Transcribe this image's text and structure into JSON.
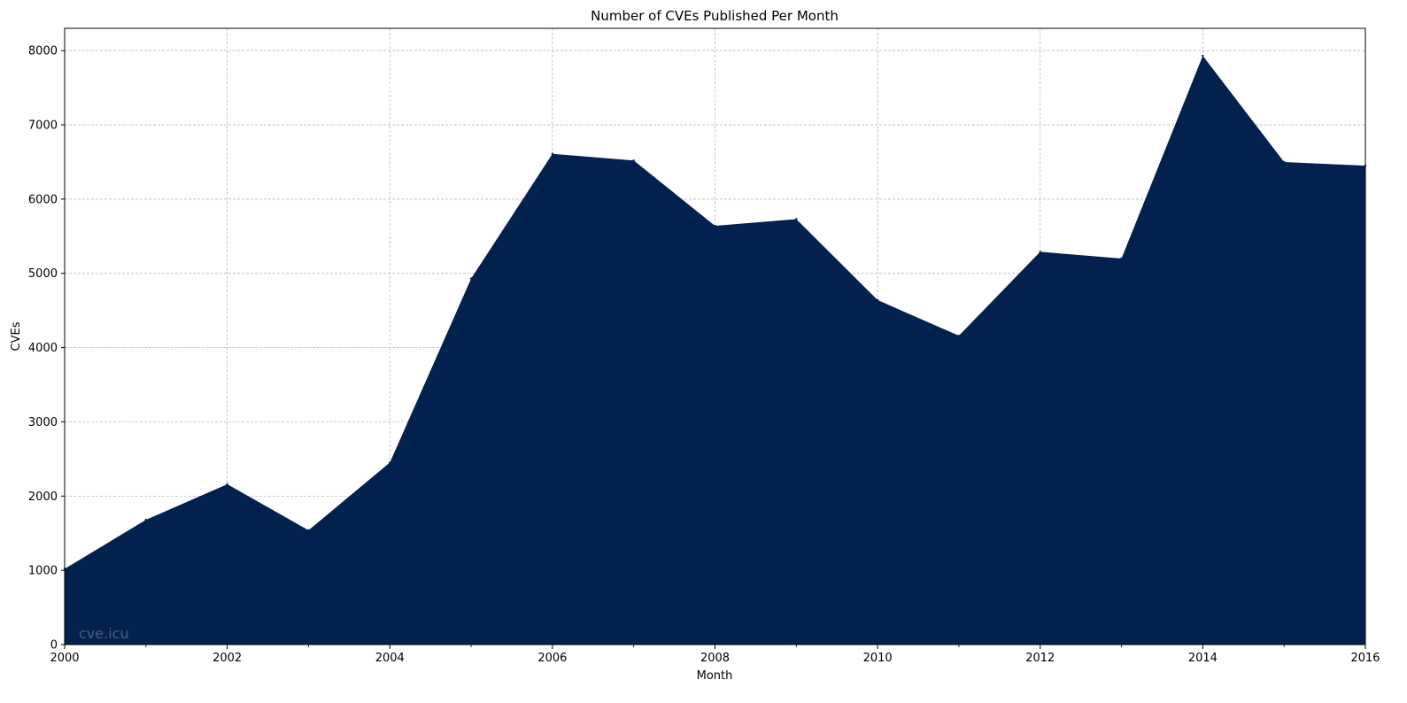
{
  "chart_data": {
    "type": "area",
    "title": "Number of CVEs Published Per Month",
    "xlabel": "Month",
    "ylabel": "CVEs",
    "x": [
      2000,
      2001,
      2002,
      2003,
      2004,
      2005,
      2006,
      2007,
      2008,
      2009,
      2010,
      2011,
      2012,
      2013,
      2014,
      2015,
      2016
    ],
    "values": [
      1020,
      1680,
      2160,
      1540,
      2450,
      4930,
      6610,
      6520,
      5640,
      5730,
      4640,
      4160,
      5290,
      5200,
      7930,
      6500,
      6450
    ],
    "xlim": [
      2000,
      2016
    ],
    "ylim": [
      0,
      8300
    ],
    "x_ticks": [
      "2000",
      "2002",
      "2004",
      "2006",
      "2008",
      "2010",
      "2012",
      "2014",
      "2016"
    ],
    "y_ticks": [
      "0",
      "1000",
      "2000",
      "3000",
      "4000",
      "5000",
      "6000",
      "7000",
      "8000"
    ],
    "grid": true,
    "fill_color": "#02214f",
    "grid_color": "#b0b0b0"
  },
  "watermark": "cve.icu"
}
